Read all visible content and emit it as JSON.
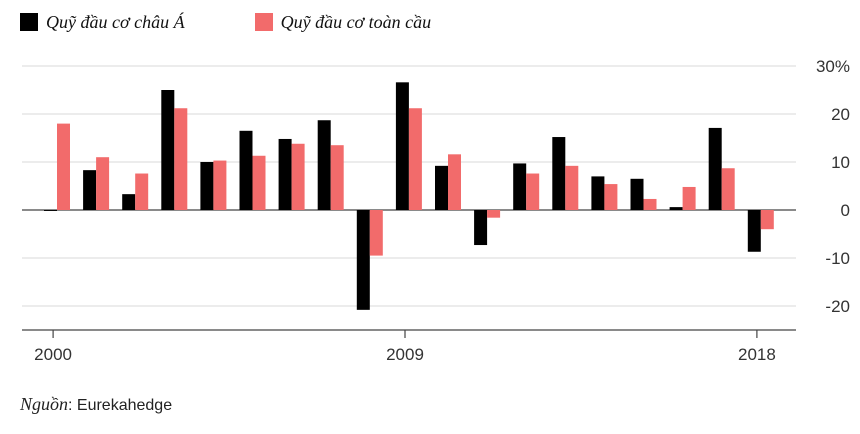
{
  "legend": {
    "items": [
      {
        "label": "Quỹ đầu cơ châu Á",
        "color": "#000000"
      },
      {
        "label": "Quỹ đầu cơ toàn cầu",
        "color": "#f26b6b"
      }
    ]
  },
  "source": {
    "prefix": "Nguồn",
    "text": ": Eurekahedge"
  },
  "chart_data": {
    "type": "bar",
    "categories": [
      "2000",
      "2001",
      "2002",
      "2003",
      "2004",
      "2005",
      "2006",
      "2007",
      "2008",
      "2009",
      "2010",
      "2011",
      "2012",
      "2013",
      "2014",
      "2015",
      "2016",
      "2017",
      "2018"
    ],
    "series": [
      {
        "name": "Quỹ đầu cơ châu Á",
        "color": "#000000",
        "values": [
          -0.2,
          8.3,
          3.3,
          25.0,
          10.0,
          16.5,
          14.8,
          18.7,
          -20.8,
          26.6,
          9.2,
          -7.3,
          9.7,
          15.2,
          7.0,
          6.5,
          0.6,
          17.1,
          -8.7
        ]
      },
      {
        "name": "Quỹ đầu cơ toàn cầu",
        "color": "#f26b6b",
        "values": [
          18.0,
          11.0,
          7.6,
          21.2,
          10.3,
          11.3,
          13.8,
          13.5,
          -9.5,
          21.2,
          11.6,
          -1.6,
          7.6,
          9.2,
          5.4,
          2.3,
          4.8,
          8.7,
          -4.0
        ]
      }
    ],
    "yticks": [
      30,
      20,
      10,
      0,
      -10,
      -20
    ],
    "ytick_labels": [
      "30%",
      "20",
      "10",
      "0",
      "-10",
      "-20"
    ],
    "xtick_labels": [
      {
        "category": "2000",
        "label": "2000"
      },
      {
        "category": "2009",
        "label": "2009"
      },
      {
        "category": "2018",
        "label": "2018"
      }
    ],
    "ylim": [
      -24,
      32
    ],
    "grid": true,
    "legend_position": "top-left"
  }
}
